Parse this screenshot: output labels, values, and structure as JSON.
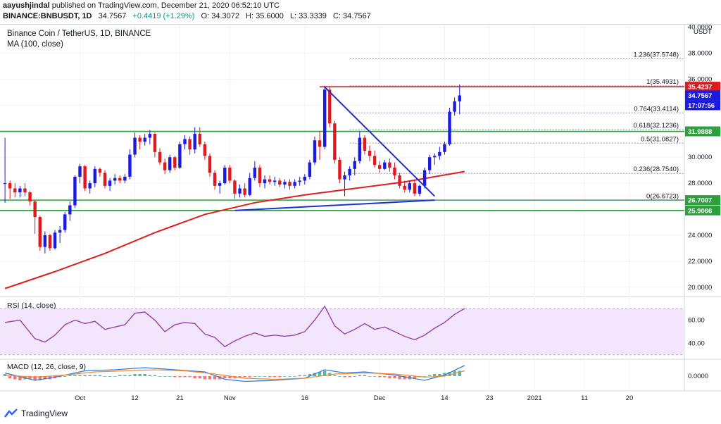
{
  "header": {
    "publisher": "aayushjindal",
    "published_text": "published on TradingView.com, December 21, 2020 06:52:10 UTC",
    "symbol_line": "BINANCE:BNBUSDT, 1D",
    "last": "34.7567",
    "change": "+0.4419 (+1.29%)",
    "o": "O: 34.3072",
    "h": "H: 35.6000",
    "l": "L: 33.3339",
    "c": "C: 34.7567"
  },
  "legend": {
    "title": "Binance Coin / TetherUS, 1D, BINANCE",
    "ma": "MA (100, close)",
    "rsi": "RSI (14, close)",
    "macd": "MACD (12, 26, close, 9)"
  },
  "brand": "TradingView",
  "colors": {
    "up": "#1a1ae0",
    "down": "#e0191f",
    "ma": "#e11e1e",
    "hline": "#2e9e3e",
    "trend": "#1f2fd6",
    "rsi": "#8e44ad",
    "rsi_band": "#f3e5fb",
    "macd_line": "#2f7fe0",
    "signal_line": "#f08c2e",
    "fib": "#9b8bb0",
    "resistance": "#e0191f"
  },
  "chart_data": {
    "type": "candlestick",
    "price_axis": {
      "unit": "USDT",
      "ylim": [
        19.5,
        40.2
      ],
      "ticks": [
        "40.0000",
        "38.0000",
        "36.0000",
        "34.0000",
        "32.0000",
        "30.0000",
        "28.0000",
        "26.0000",
        "24.0000",
        "22.0000",
        "20.0000"
      ],
      "tick_values": [
        40,
        38,
        36,
        34,
        32,
        30,
        28,
        26,
        24,
        22,
        20
      ]
    },
    "time_axis": {
      "labels": [
        "Oct",
        "12",
        "21",
        "Nov",
        "16",
        "Dec",
        "14",
        "23",
        "2021",
        "11",
        "20"
      ],
      "day_index": [
        15,
        26,
        35,
        45,
        60,
        75,
        88,
        97,
        106,
        116,
        125
      ],
      "xlim": [
        -1,
        136
      ]
    },
    "candles": [
      [
        28.0,
        31.5,
        26.5,
        28.0
      ],
      [
        28.0,
        28.2,
        26.8,
        27.6
      ],
      [
        27.6,
        28.0,
        26.9,
        27.3
      ],
      [
        27.3,
        27.8,
        26.9,
        27.6
      ],
      [
        27.6,
        28.0,
        27.0,
        27.3
      ],
      [
        27.3,
        27.4,
        26.3,
        26.6
      ],
      [
        26.6,
        26.7,
        24.1,
        25.4
      ],
      [
        25.4,
        25.5,
        22.8,
        23.1
      ],
      [
        23.1,
        24.3,
        22.6,
        24.0
      ],
      [
        24.0,
        24.1,
        22.8,
        23.0
      ],
      [
        23.0,
        24.4,
        22.9,
        24.2
      ],
      [
        24.2,
        24.7,
        23.4,
        24.4
      ],
      [
        24.4,
        25.8,
        24.2,
        25.6
      ],
      [
        25.6,
        26.6,
        25.1,
        26.3
      ],
      [
        26.3,
        28.6,
        26.1,
        28.5
      ],
      [
        28.5,
        29.5,
        28.0,
        29.3
      ],
      [
        29.3,
        29.4,
        27.4,
        27.6
      ],
      [
        27.6,
        28.2,
        27.2,
        28.0
      ],
      [
        28.0,
        29.3,
        27.7,
        29.1
      ],
      [
        29.1,
        29.2,
        28.5,
        28.8
      ],
      [
        28.8,
        29.0,
        27.6,
        27.8
      ],
      [
        27.8,
        28.4,
        27.4,
        28.2
      ],
      [
        28.2,
        28.7,
        27.9,
        28.4
      ],
      [
        28.4,
        28.6,
        28.0,
        28.2
      ],
      [
        28.2,
        28.7,
        28.0,
        28.5
      ],
      [
        28.5,
        30.6,
        28.3,
        30.2
      ],
      [
        30.2,
        31.9,
        30.0,
        31.5
      ],
      [
        31.5,
        31.7,
        30.6,
        31.2
      ],
      [
        31.2,
        31.8,
        30.9,
        31.5
      ],
      [
        31.5,
        32.1,
        31.0,
        31.8
      ],
      [
        31.8,
        31.9,
        30.0,
        30.4
      ],
      [
        30.4,
        30.7,
        29.4,
        29.6
      ],
      [
        29.6,
        29.9,
        28.7,
        29.0
      ],
      [
        29.0,
        30.2,
        28.8,
        30.0
      ],
      [
        30.0,
        30.1,
        29.0,
        29.2
      ],
      [
        29.2,
        31.2,
        29.1,
        31.0
      ],
      [
        31.0,
        31.7,
        30.6,
        31.4
      ],
      [
        31.4,
        31.6,
        30.2,
        30.6
      ],
      [
        30.6,
        32.3,
        30.3,
        31.8
      ],
      [
        31.8,
        32.3,
        30.8,
        31.0
      ],
      [
        31.0,
        31.2,
        29.8,
        30.1
      ],
      [
        30.1,
        30.3,
        28.5,
        28.8
      ],
      [
        28.8,
        29.0,
        27.5,
        27.8
      ],
      [
        27.8,
        28.2,
        27.2,
        28.0
      ],
      [
        28.0,
        29.4,
        27.9,
        29.2
      ],
      [
        29.2,
        29.4,
        28.0,
        28.2
      ],
      [
        28.2,
        28.3,
        26.8,
        27.2
      ],
      [
        27.2,
        27.9,
        26.9,
        27.6
      ],
      [
        27.6,
        28.0,
        26.9,
        27.1
      ],
      [
        27.1,
        28.8,
        27.0,
        28.4
      ],
      [
        28.4,
        29.7,
        28.2,
        29.2
      ],
      [
        29.2,
        29.4,
        27.7,
        28.0
      ],
      [
        28.0,
        28.6,
        27.6,
        28.3
      ],
      [
        28.3,
        28.6,
        27.9,
        28.1
      ],
      [
        28.1,
        28.5,
        27.8,
        28.2
      ],
      [
        28.2,
        28.4,
        27.7,
        27.9
      ],
      [
        27.9,
        28.3,
        27.6,
        28.1
      ],
      [
        28.1,
        28.3,
        27.5,
        27.8
      ],
      [
        27.8,
        28.3,
        27.6,
        28.1
      ],
      [
        28.1,
        28.5,
        27.8,
        28.2
      ],
      [
        28.2,
        28.7,
        27.9,
        28.5
      ],
      [
        28.5,
        29.8,
        28.3,
        29.6
      ],
      [
        29.6,
        31.6,
        29.4,
        31.3
      ],
      [
        31.3,
        32.0,
        29.8,
        30.8
      ],
      [
        30.8,
        35.5,
        30.6,
        35.2
      ],
      [
        35.2,
        35.4,
        32.3,
        32.6
      ],
      [
        32.6,
        32.8,
        29.5,
        29.8
      ],
      [
        29.8,
        30.0,
        28.0,
        28.3
      ],
      [
        28.3,
        28.9,
        27.0,
        28.6
      ],
      [
        28.6,
        29.3,
        28.2,
        29.1
      ],
      [
        29.1,
        30.0,
        28.6,
        29.7
      ],
      [
        29.7,
        32.0,
        29.5,
        31.5
      ],
      [
        31.5,
        31.7,
        30.2,
        30.5
      ],
      [
        30.5,
        30.9,
        29.7,
        30.1
      ],
      [
        30.1,
        30.5,
        29.2,
        29.4
      ],
      [
        29.4,
        29.7,
        28.8,
        29.1
      ],
      [
        29.1,
        29.8,
        29.0,
        29.6
      ],
      [
        29.6,
        29.9,
        28.9,
        29.2
      ],
      [
        29.2,
        29.6,
        28.3,
        28.6
      ],
      [
        28.6,
        28.8,
        27.6,
        27.8
      ],
      [
        27.8,
        28.2,
        27.3,
        27.5
      ],
      [
        27.5,
        28.2,
        27.3,
        28.0
      ],
      [
        28.0,
        28.2,
        27.0,
        27.2
      ],
      [
        27.2,
        27.9,
        27.0,
        27.8
      ],
      [
        27.8,
        29.2,
        27.6,
        29.0
      ],
      [
        29.0,
        30.2,
        28.7,
        30.0
      ],
      [
        30.0,
        30.3,
        29.4,
        30.1
      ],
      [
        30.1,
        30.8,
        29.8,
        30.4
      ],
      [
        30.4,
        31.2,
        30.2,
        31.0
      ],
      [
        31.0,
        33.8,
        30.9,
        33.5
      ],
      [
        33.5,
        34.6,
        33.2,
        34.3
      ],
      [
        34.3,
        35.6,
        33.3,
        34.7567
      ]
    ],
    "moving_average": {
      "name": "MA (100, close)",
      "points": [
        [
          0,
          19.9
        ],
        [
          10,
          21.2
        ],
        [
          20,
          22.6
        ],
        [
          30,
          24.2
        ],
        [
          40,
          25.6
        ],
        [
          50,
          26.5
        ],
        [
          60,
          27.1
        ],
        [
          70,
          27.6
        ],
        [
          80,
          28.1
        ],
        [
          92,
          28.9
        ]
      ]
    },
    "horizontal_lines": [
      {
        "value": 31.9888,
        "label": "31.9888"
      },
      {
        "value": 26.7007,
        "label": "26.7007"
      },
      {
        "value": 25.9066,
        "label": "25.9066"
      }
    ],
    "resistance_line": {
      "value": 35.4237,
      "label": "35.4237",
      "from_day": 63
    },
    "fib_levels": [
      {
        "ratio": "1.236",
        "value": 37.5748,
        "text": "1.236(37.5748)"
      },
      {
        "ratio": "1",
        "value": 35.4931,
        "text": "1(35.4931)"
      },
      {
        "ratio": "0.764",
        "value": 33.4114,
        "text": "0.764(33.4114)"
      },
      {
        "ratio": "0.618",
        "value": 32.1236,
        "text": "0.618(32.1236)"
      },
      {
        "ratio": "0.5",
        "value": 31.0827,
        "text": "0.5(31.0827)"
      },
      {
        "ratio": "0.236",
        "value": 28.754,
        "text": "0.236(28.7540)"
      },
      {
        "ratio": "0",
        "value": 26.6723,
        "text": "0(26.6723)"
      }
    ],
    "fib_from_day": 69,
    "trendlines": [
      {
        "from": [
          64,
          35.4
        ],
        "to": [
          86,
          27.0
        ]
      },
      {
        "from": [
          46,
          25.9
        ],
        "to": [
          86,
          26.7
        ]
      }
    ],
    "price_labels": [
      {
        "value": 35.4237,
        "label": "35.4237",
        "kind": "resistance"
      },
      {
        "value": 34.7567,
        "label": "34.7567",
        "kind": "last"
      },
      {
        "value": 34.0,
        "label": "17:07:56",
        "kind": "countdown"
      },
      {
        "value": 31.9888,
        "label": "31.9888",
        "kind": "hline"
      },
      {
        "value": 26.7007,
        "label": "26.7007",
        "kind": "hline"
      },
      {
        "value": 25.9066,
        "label": "25.9066",
        "kind": "hline"
      }
    ],
    "rsi": {
      "name": "RSI (14, close)",
      "ylim": [
        28,
        78
      ],
      "band": [
        30,
        70
      ],
      "ticks": [
        "60.00",
        "40.00"
      ],
      "tick_values": [
        60,
        40
      ],
      "points": [
        [
          0,
          58
        ],
        [
          3,
          60
        ],
        [
          6,
          44
        ],
        [
          8,
          41
        ],
        [
          10,
          47
        ],
        [
          12,
          56
        ],
        [
          14,
          60
        ],
        [
          16,
          57
        ],
        [
          18,
          59
        ],
        [
          20,
          52
        ],
        [
          22,
          54
        ],
        [
          24,
          56
        ],
        [
          26,
          66
        ],
        [
          28,
          67
        ],
        [
          30,
          60
        ],
        [
          32,
          50
        ],
        [
          34,
          56
        ],
        [
          36,
          58
        ],
        [
          38,
          57
        ],
        [
          40,
          48
        ],
        [
          42,
          45
        ],
        [
          44,
          37
        ],
        [
          46,
          42
        ],
        [
          48,
          46
        ],
        [
          50,
          49
        ],
        [
          52,
          46
        ],
        [
          54,
          47
        ],
        [
          56,
          46
        ],
        [
          58,
          47
        ],
        [
          60,
          50
        ],
        [
          62,
          60
        ],
        [
          64,
          72
        ],
        [
          66,
          55
        ],
        [
          68,
          48
        ],
        [
          70,
          52
        ],
        [
          72,
          57
        ],
        [
          74,
          52
        ],
        [
          76,
          54
        ],
        [
          78,
          50
        ],
        [
          80,
          46
        ],
        [
          82,
          43
        ],
        [
          84,
          47
        ],
        [
          86,
          53
        ],
        [
          88,
          58
        ],
        [
          90,
          65
        ],
        [
          92,
          70
        ]
      ]
    },
    "macd": {
      "name": "MACD (12, 26, close, 9)",
      "ylim": [
        -1.4,
        1.4
      ],
      "ticks": [
        "0.0000"
      ],
      "tick_values": [
        0
      ],
      "macd_line": [
        [
          0,
          0.3
        ],
        [
          6,
          -0.4
        ],
        [
          10,
          -0.1
        ],
        [
          16,
          0.5
        ],
        [
          22,
          0.6
        ],
        [
          28,
          0.8
        ],
        [
          34,
          0.6
        ],
        [
          40,
          0.4
        ],
        [
          44,
          -0.3
        ],
        [
          48,
          -0.5
        ],
        [
          54,
          -0.4
        ],
        [
          60,
          -0.2
        ],
        [
          64,
          0.6
        ],
        [
          68,
          0.3
        ],
        [
          72,
          0.4
        ],
        [
          78,
          0.1
        ],
        [
          84,
          -0.4
        ],
        [
          88,
          0.1
        ],
        [
          92,
          1.0
        ]
      ],
      "signal_line": [
        [
          0,
          0.1
        ],
        [
          6,
          -0.1
        ],
        [
          12,
          0.1
        ],
        [
          18,
          0.4
        ],
        [
          24,
          0.5
        ],
        [
          30,
          0.6
        ],
        [
          36,
          0.5
        ],
        [
          42,
          0.2
        ],
        [
          48,
          -0.2
        ],
        [
          54,
          -0.3
        ],
        [
          60,
          -0.2
        ],
        [
          66,
          0.2
        ],
        [
          72,
          0.3
        ],
        [
          78,
          0.2
        ],
        [
          84,
          -0.1
        ],
        [
          88,
          0.0
        ],
        [
          92,
          0.5
        ]
      ],
      "histogram": [
        0.2,
        -0.2,
        -0.3,
        -0.4,
        -0.3,
        -0.3,
        -0.4,
        -0.4,
        -0.3,
        -0.3,
        -0.2,
        -0.1,
        0.0,
        0.1,
        0.1,
        0.1,
        0.1,
        0.1,
        0.1,
        0.1,
        0.0,
        0.0,
        0.0,
        0.1,
        0.1,
        0.1,
        0.2,
        0.2,
        0.2,
        0.1,
        0.1,
        0.0,
        0.0,
        0.0,
        -0.1,
        -0.1,
        -0.1,
        -0.1,
        -0.2,
        -0.2,
        -0.3,
        -0.3,
        -0.3,
        -0.3,
        -0.2,
        -0.2,
        -0.2,
        -0.1,
        -0.1,
        -0.1,
        0.0,
        0.0,
        0.0,
        -0.1,
        -0.1,
        -0.1,
        0.0,
        0.0,
        0.0,
        0.1,
        0.1,
        0.2,
        0.3,
        0.4,
        0.5,
        0.3,
        0.1,
        0.0,
        -0.1,
        -0.1,
        0.0,
        0.1,
        0.1,
        0.0,
        0.0,
        -0.1,
        -0.1,
        -0.2,
        -0.2,
        -0.3,
        -0.3,
        -0.3,
        -0.2,
        -0.1,
        0.0,
        0.1,
        0.2,
        0.2,
        0.3,
        0.4,
        0.5,
        0.5
      ]
    }
  }
}
